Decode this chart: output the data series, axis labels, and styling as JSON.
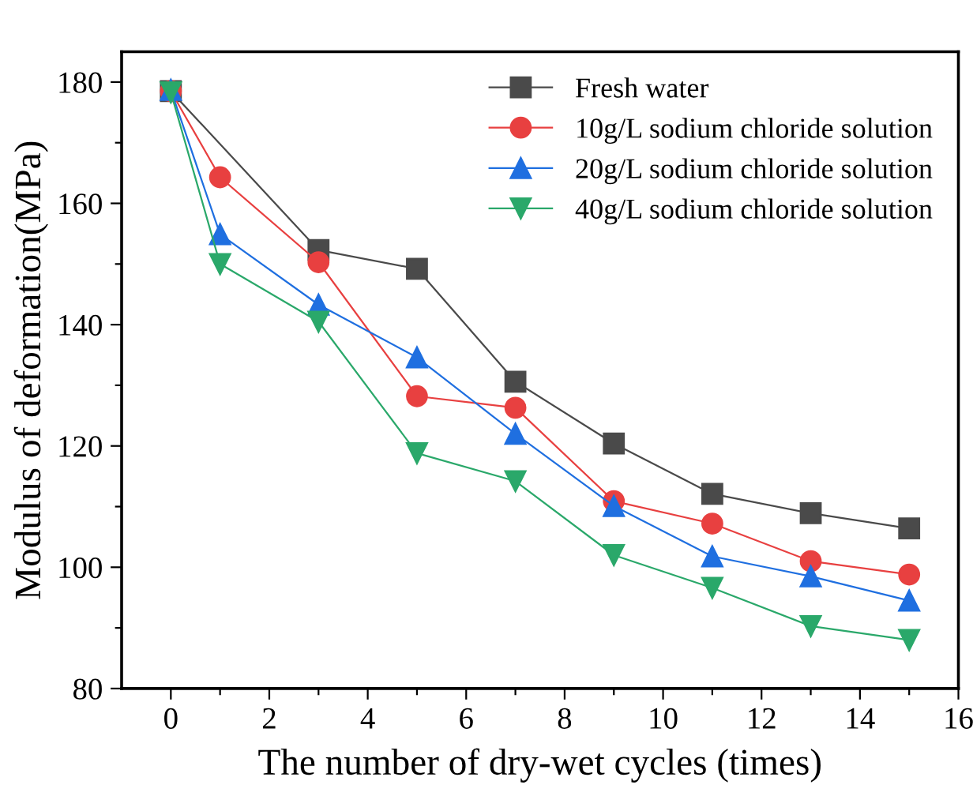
{
  "chart_data": {
    "type": "line",
    "xlabel": "The number of dry-wet cycles (times)",
    "ylabel": "Modulus of deformation(MPa)",
    "x": [
      0,
      1,
      3,
      5,
      7,
      9,
      11,
      13,
      15
    ],
    "series": [
      {
        "name": "Fresh water",
        "color": "#4a4a4a",
        "marker": "square",
        "x": [
          0,
          3,
          5,
          7,
          9,
          11,
          13,
          15
        ],
        "values": [
          178.5,
          152.3,
          149.2,
          130.6,
          120.4,
          112.1,
          108.9,
          106.4
        ]
      },
      {
        "name": "10g/L sodium chloride solution",
        "color": "#e84040",
        "marker": "circle",
        "values": [
          178.5,
          164.3,
          150.3,
          128.2,
          126.3,
          110.9,
          107.2,
          101.0,
          98.8
        ]
      },
      {
        "name": "20g/L sodium chloride solution",
        "color": "#1f6fe0",
        "marker": "triangle",
        "values": [
          178.7,
          154.9,
          143.3,
          134.6,
          122.0,
          110.1,
          101.8,
          98.5,
          94.5
        ]
      },
      {
        "name": "40g/L sodium chloride solution",
        "color": "#2aa86a",
        "marker": "triangle_down",
        "values": [
          178.3,
          150.0,
          140.5,
          118.8,
          114.2,
          102.0,
          96.6,
          90.3,
          88.0
        ]
      }
    ],
    "xlim": [
      -1,
      16
    ],
    "ylim": [
      80,
      185
    ],
    "xticks": [
      0,
      {
        "value": 1,
        "label": null
      },
      2,
      {
        "value": 3,
        "label": null
      },
      4,
      {
        "value": 5,
        "label": null
      },
      6,
      {
        "value": 7,
        "label": null
      },
      8,
      {
        "value": 9,
        "label": null
      },
      10,
      {
        "value": 11,
        "label": null
      },
      12,
      {
        "value": 13,
        "label": null
      },
      14,
      {
        "value": 15,
        "label": null
      },
      16
    ],
    "yticks": [
      80,
      {
        "value": 90,
        "label": null
      },
      100,
      {
        "value": 110,
        "label": null
      },
      120,
      {
        "value": 130,
        "label": null
      },
      140,
      {
        "value": 150,
        "label": null
      },
      160,
      {
        "value": 170,
        "label": null
      },
      180
    ],
    "grid": false,
    "legend": "top right",
    "line_style": "solid"
  }
}
